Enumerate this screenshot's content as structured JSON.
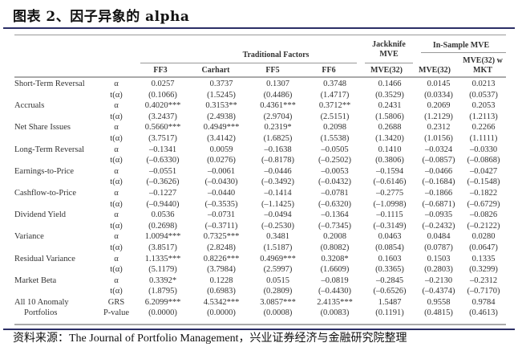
{
  "title": "图表 2、因子异象的 alpha",
  "header": {
    "traditional_factors": "Traditional Factors",
    "jackknife_mve": "Jackknife MVE",
    "in_sample_mve": "In-Sample MVE",
    "columns": [
      "FF3",
      "Carhart",
      "FF5",
      "FF6",
      "MVE(32)",
      "MVE(32)",
      "MVE(32) w MKT"
    ]
  },
  "rows": [
    {
      "label": "Short-Term Reversal",
      "stat": "α",
      "values": [
        "0.0257",
        "0.3737",
        "0.1307",
        "0.3748",
        "0.1466",
        "0.0145",
        "0.0213"
      ]
    },
    {
      "label": "",
      "stat": "t(α)",
      "values": [
        "(0.1066)",
        "(1.5245)",
        "(0.4486)",
        "(1.4717)",
        "(0.3529)",
        "(0.0334)",
        "(0.0537)"
      ]
    },
    {
      "label": "Accruals",
      "stat": "α",
      "values": [
        "0.4020***",
        "0.3153**",
        "0.4361***",
        "0.3712**",
        "0.2431",
        "0.2069",
        "0.2053"
      ]
    },
    {
      "label": "",
      "stat": "t(α)",
      "values": [
        "(3.2437)",
        "(2.4938)",
        "(2.9704)",
        "(2.5151)",
        "(1.5806)",
        "(1.2129)",
        "(1.2113)"
      ]
    },
    {
      "label": "Net Share Issues",
      "stat": "α",
      "values": [
        "0.5660***",
        "0.4949***",
        "0.2319*",
        "0.2098",
        "0.2688",
        "0.2312",
        "0.2266"
      ]
    },
    {
      "label": "",
      "stat": "t(α)",
      "values": [
        "(3.7517)",
        "(3.4142)",
        "(1.6825)",
        "(1.5538)",
        "(1.3420)",
        "(1.0156)",
        "(1.1111)"
      ]
    },
    {
      "label": "Long-Term Reversal",
      "stat": "α",
      "values": [
        "–0.1341",
        "0.0059",
        "–0.1638",
        "–0.0505",
        "0.1410",
        "–0.0324",
        "–0.0330"
      ]
    },
    {
      "label": "",
      "stat": "t(α)",
      "values": [
        "(–0.6330)",
        "(0.0276)",
        "(–0.8178)",
        "(–0.2502)",
        "(0.3806)",
        "(–0.0857)",
        "(–0.0868)"
      ]
    },
    {
      "label": "Earnings-to-Price",
      "stat": "α",
      "values": [
        "–0.0551",
        "–0.0061",
        "–0.0446",
        "–0.0053",
        "–0.1594",
        "–0.0466",
        "–0.0427"
      ]
    },
    {
      "label": "",
      "stat": "t(α)",
      "values": [
        "(–0.3626)",
        "(–0.0430)",
        "(–0.3492)",
        "(–0.0432)",
        "(–0.6146)",
        "(–0.1684)",
        "(–0.1548)"
      ]
    },
    {
      "label": "Cashflow-to-Price",
      "stat": "α",
      "values": [
        "–0.1227",
        "–0.0440",
        "–0.1414",
        "–0.0781",
        "–0.2775",
        "–0.1866",
        "–0.1822"
      ]
    },
    {
      "label": "",
      "stat": "t(α)",
      "values": [
        "(–0.9440)",
        "(–0.3535)",
        "(–1.1425)",
        "(–0.6320)",
        "(–1.0998)",
        "(–0.6871)",
        "(–0.6729)"
      ]
    },
    {
      "label": "Dividend Yield",
      "stat": "α",
      "values": [
        "0.0536",
        "–0.0731",
        "–0.0494",
        "–0.1364",
        "–0.1115",
        "–0.0935",
        "–0.0826"
      ]
    },
    {
      "label": "",
      "stat": "t(α)",
      "values": [
        "(0.2698)",
        "(–0.3711)",
        "(–0.2530)",
        "(–0.7345)",
        "(–0.3149)",
        "(–0.2432)",
        "(–0.2122)"
      ]
    },
    {
      "label": "Variance",
      "stat": "α",
      "values": [
        "1.0094***",
        "0.7325***",
        "0.3481",
        "0.2008",
        "0.0463",
        "0.0484",
        "0.0280"
      ]
    },
    {
      "label": "",
      "stat": "t(α)",
      "values": [
        "(3.8517)",
        "(2.8248)",
        "(1.5187)",
        "(0.8082)",
        "(0.0854)",
        "(0.0787)",
        "(0.0647)"
      ]
    },
    {
      "label": "Residual Variance",
      "stat": "α",
      "values": [
        "1.1335***",
        "0.8226***",
        "0.4969***",
        "0.3208*",
        "0.1603",
        "0.1503",
        "0.1335"
      ]
    },
    {
      "label": "",
      "stat": "t(α)",
      "values": [
        "(5.1179)",
        "(3.7984)",
        "(2.5997)",
        "(1.6609)",
        "(0.3365)",
        "(0.2803)",
        "(0.3299)"
      ]
    },
    {
      "label": "Market Beta",
      "stat": "α",
      "values": [
        "0.3392*",
        "0.1228",
        "0.0515",
        "–0.0819",
        "–0.2845",
        "–0.2130",
        "–0.2312"
      ]
    },
    {
      "label": "",
      "stat": "t(α)",
      "values": [
        "(1.8795)",
        "(0.6983)",
        "(0.2809)",
        "(–0.4430)",
        "(–0.6526)",
        "(–0.4374)",
        "(–0.7170)"
      ]
    },
    {
      "label": "All 10 Anomaly",
      "stat": "GRS",
      "values": [
        "6.2099***",
        "4.5342***",
        "3.0857***",
        "2.4135***",
        "1.5487",
        "0.9558",
        "0.9784"
      ]
    },
    {
      "label": "Portfolios",
      "stat": "P-value",
      "values": [
        "(0.0000)",
        "(0.0000)",
        "(0.0008)",
        "(0.0083)",
        "(0.1191)",
        "(0.4815)",
        "(0.4613)"
      ]
    }
  ],
  "source": "资料来源：The Journal of Portfolio Management，兴业证券经济与金融研究院整理",
  "colors": {
    "accent_rule": "#2c2f66",
    "table_rule": "#999999"
  }
}
